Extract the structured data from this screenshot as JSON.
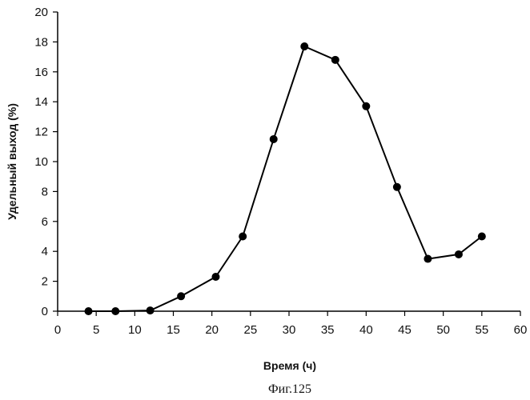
{
  "chart_data": {
    "type": "line",
    "title": "",
    "xlabel": "Время (ч)",
    "ylabel": "Удельный выход (%)",
    "xlim": [
      0,
      60
    ],
    "ylim": [
      0,
      20
    ],
    "x_ticks": [
      0,
      5,
      10,
      15,
      20,
      25,
      30,
      35,
      40,
      45,
      50,
      55,
      60
    ],
    "y_ticks": [
      0,
      2,
      4,
      6,
      8,
      10,
      12,
      14,
      16,
      18,
      20
    ],
    "grid": false,
    "legend": "none",
    "series": [
      {
        "x": [
          4,
          7.5,
          12,
          16,
          20.5,
          24,
          28,
          32,
          36,
          40,
          44,
          48,
          52,
          55
        ],
        "y": [
          0,
          0,
          0.05,
          1,
          2.3,
          5,
          11.5,
          17.7,
          16.8,
          13.7,
          8.3,
          3.5,
          3.8,
          5
        ],
        "color": "#000000",
        "marker": "circle"
      }
    ]
  },
  "caption": "Фиг.125"
}
